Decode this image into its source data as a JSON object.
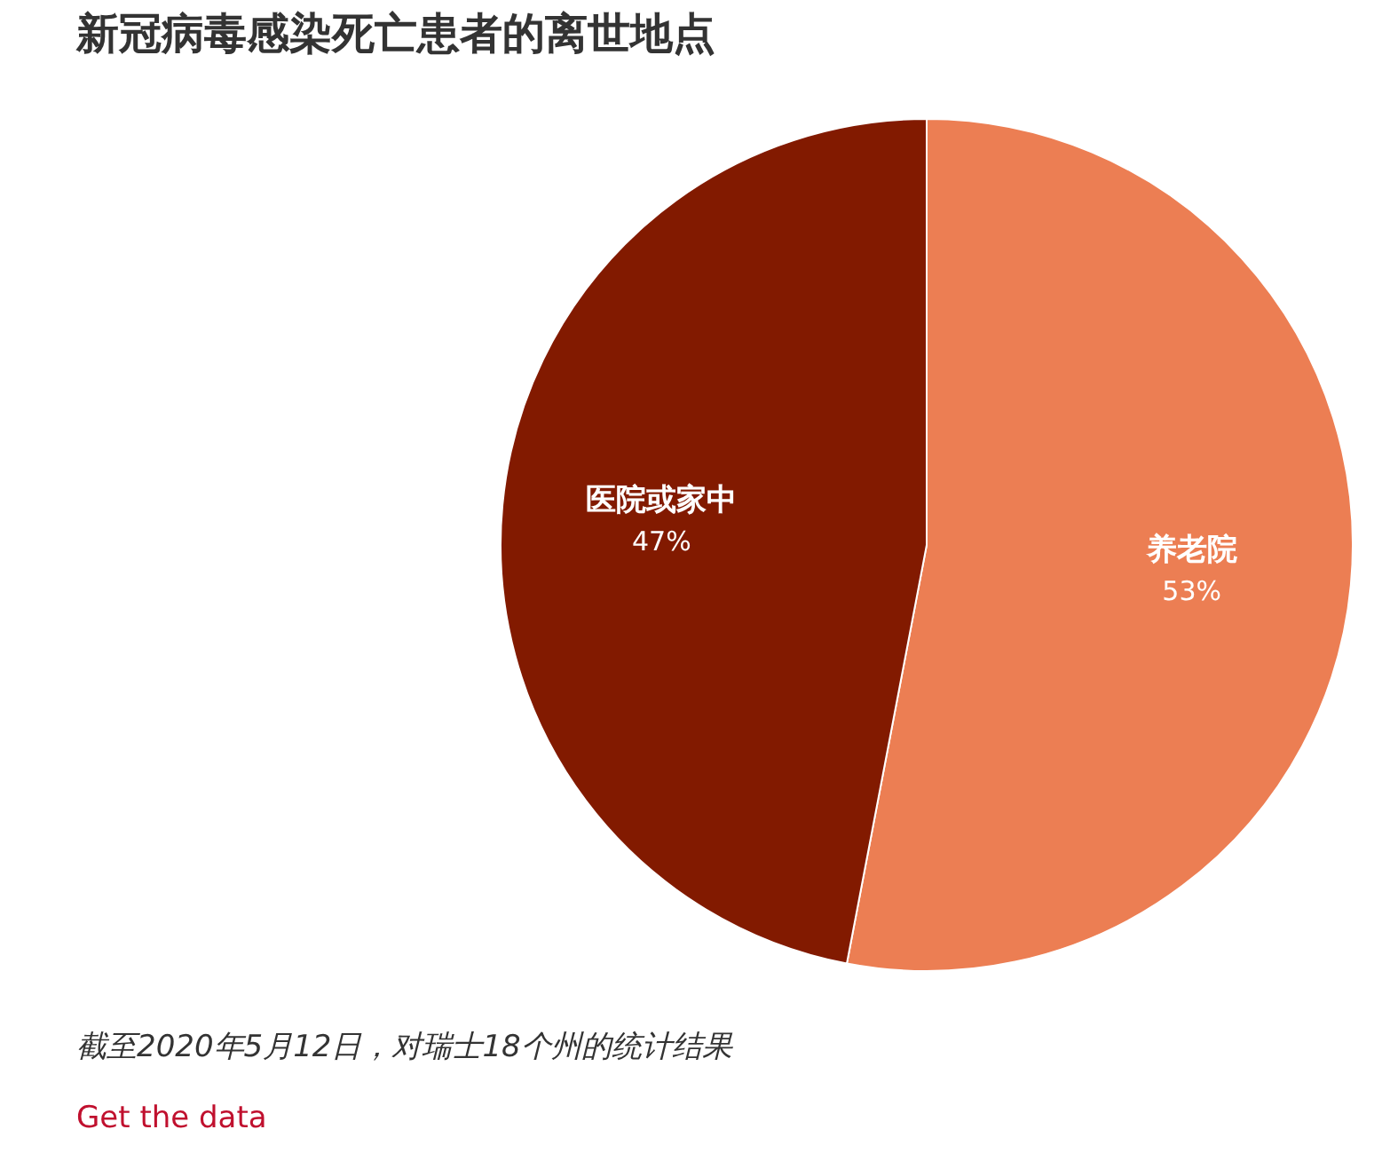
{
  "chart_data": {
    "type": "pie",
    "title": "新冠病毒感染死亡患者的离世地点",
    "categories": [
      "养老院",
      "医院或家中"
    ],
    "values": [
      53,
      47
    ],
    "colors": [
      "#ec7e53",
      "#821a00"
    ],
    "value_labels": [
      "53%",
      "47%"
    ],
    "annotations": [
      "截至2020年5月12日，对瑞士18个州的统计结果",
      "Get the data"
    ]
  }
}
